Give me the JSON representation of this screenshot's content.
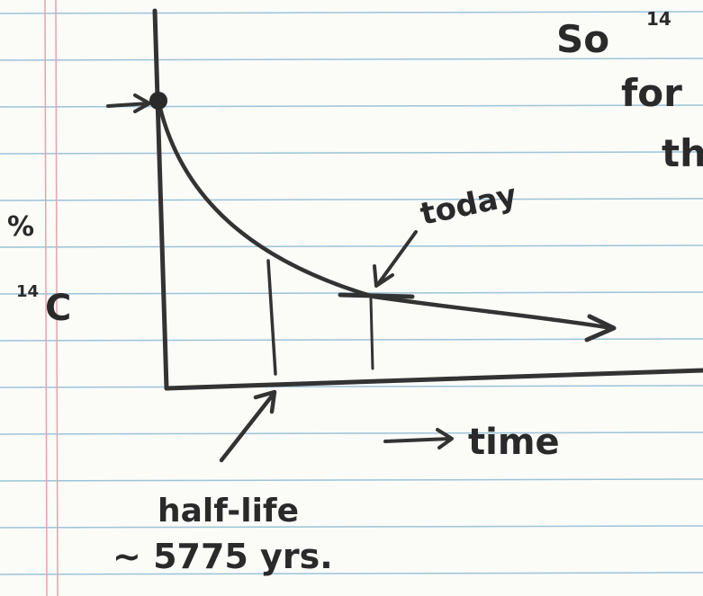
{
  "annotations": {
    "percent": "%",
    "isotope_mass": "14",
    "isotope_symbol": "C",
    "today": "today",
    "time": "time",
    "half_life": "half-life",
    "half_life_value": "~ 5775 yrs."
  },
  "margin_notes": [
    "So",
    "14",
    "for",
    "th"
  ]
}
